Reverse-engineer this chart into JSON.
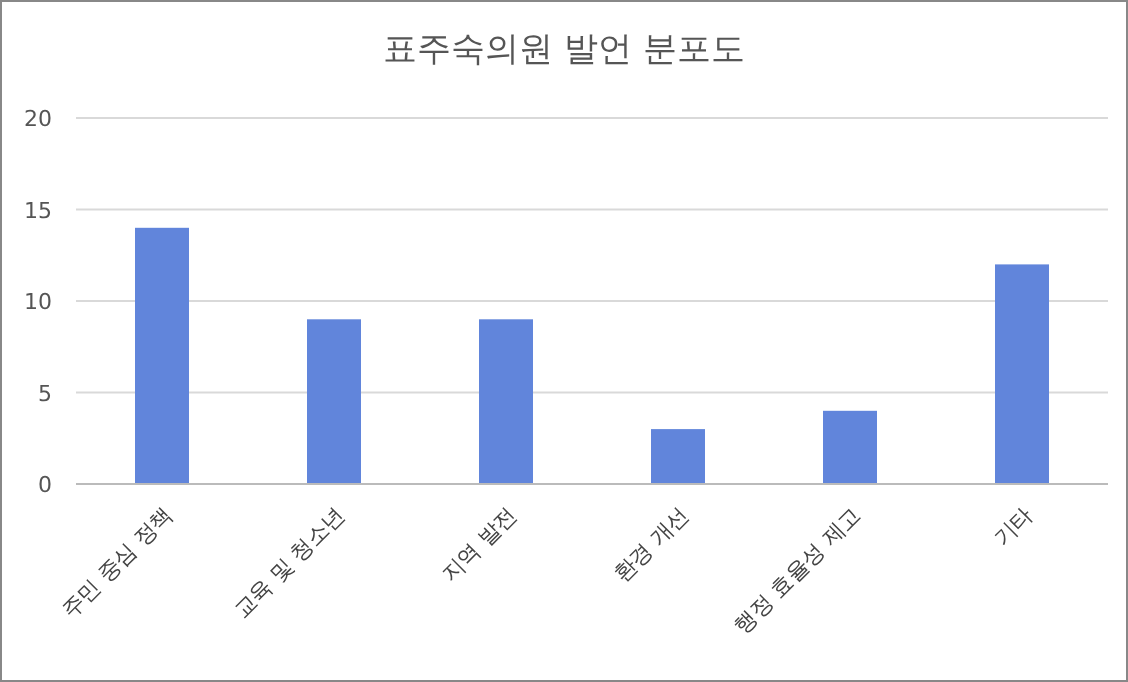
{
  "chart_data": {
    "type": "bar",
    "title": "표주숙의원 발언 분포도",
    "categories": [
      "주민 중심 정책",
      "교육 및 청소년",
      "지역 발전",
      "환경 개선",
      "행정 효율성 제고",
      "기타"
    ],
    "values": [
      14,
      9,
      9,
      3,
      4,
      12
    ],
    "color": "#6185db",
    "ylim": [
      0,
      20
    ],
    "yticks": [
      0,
      5,
      10,
      15,
      20
    ],
    "grid": "y"
  }
}
